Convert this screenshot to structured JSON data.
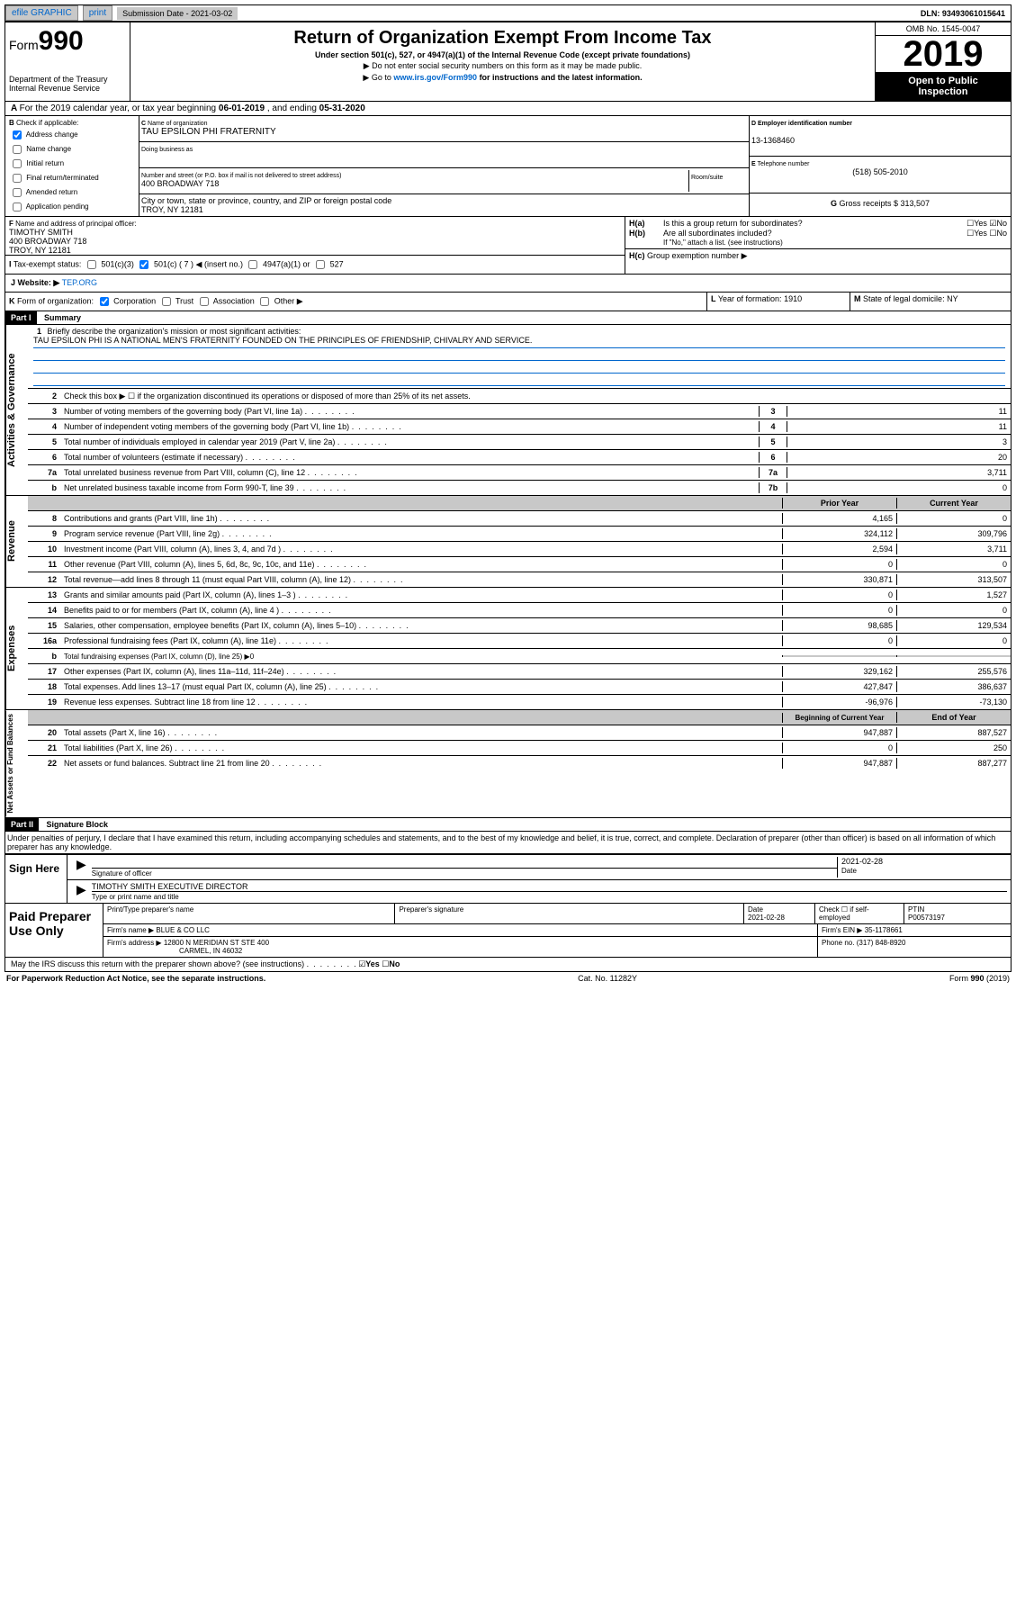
{
  "topbar": {
    "efile": "efile GRAPHIC",
    "print": "print",
    "sublabel": "Submission Date - 2021-03-02",
    "dln": "DLN: 93493061015641"
  },
  "header": {
    "form": "Form",
    "num": "990",
    "dept": "Department of the Treasury",
    "irs": "Internal Revenue Service",
    "title": "Return of Organization Exempt From Income Tax",
    "sub1": "Under section 501(c), 527, or 4947(a)(1) of the Internal Revenue Code (except private foundations)",
    "sub2": "▶ Do not enter social security numbers on this form as it may be made public.",
    "sub3a": "▶ Go to ",
    "sub3link": "www.irs.gov/Form990",
    "sub3b": " for instructions and the latest information.",
    "omb": "OMB No. 1545-0047",
    "year": "2019",
    "open": "Open to Public",
    "insp": "Inspection"
  },
  "A": {
    "text": "For the 2019 calendar year, or tax year beginning ",
    "begin": "06-01-2019",
    "mid": " , and ending ",
    "end": "05-31-2020"
  },
  "B": {
    "hdr": "Check if applicable:",
    "opts": [
      "Address change",
      "Name change",
      "Initial return",
      "Final return/terminated",
      "Amended return",
      "Application pending"
    ],
    "checked": [
      true,
      false,
      false,
      false,
      false,
      false
    ]
  },
  "C": {
    "nameL": "Name of organization",
    "name": "TAU EPSILON PHI FRATERNITY",
    "dbaL": "Doing business as",
    "dba": "",
    "addrL": "Number and street (or P.O. box if mail is not delivered to street address)",
    "room": "Room/suite",
    "addr": "400 BROADWAY 718",
    "cityL": "City or town, state or province, country, and ZIP or foreign postal code",
    "city": "TROY, NY  12181"
  },
  "D": {
    "lbl": "Employer identification number",
    "val": "13-1368460"
  },
  "E": {
    "lbl": "Telephone number",
    "val": "(518) 505-2010"
  },
  "G": {
    "lbl": "Gross receipts $",
    "val": "313,507"
  },
  "F": {
    "lbl": "Name and address of principal officer:",
    "name": "TIMOTHY SMITH",
    "addr": "400 BROADWAY 718",
    "city": "TROY, NY  12181"
  },
  "H": {
    "a": "Is this a group return for subordinates?",
    "b": "Are all subordinates included?",
    "bnote": "If \"No,\" attach a list. (see instructions)",
    "c": "Group exemption number ▶"
  },
  "I": {
    "lbl": "Tax-exempt status:",
    "o1": "501(c)(3)",
    "o2": "501(c) (",
    "n": "7",
    "o2b": ") ◀ (insert no.)",
    "o3": "4947(a)(1) or",
    "o4": "527"
  },
  "J": {
    "lbl": "Website: ▶",
    "val": "TEP.ORG"
  },
  "K": {
    "lbl": "Form of organization:",
    "o": [
      "Corporation",
      "Trust",
      "Association",
      "Other ▶"
    ]
  },
  "L": {
    "lbl": "Year of formation:",
    "val": "1910"
  },
  "M": {
    "lbl": "State of legal domicile:",
    "val": "NY"
  },
  "partI": {
    "hdr": "Part I",
    "title": "Summary"
  },
  "gov": {
    "label": "Activities & Governance",
    "l1": "Briefly describe the organization's mission or most significant activities:",
    "mission": "TAU EPSILON PHI IS A NATIONAL MEN'S FRATERNITY FOUNDED ON THE PRINCIPLES OF FRIENDSHIP, CHIVALRY AND SERVICE.",
    "l2": "Check this box ▶ ☐ if the organization discontinued its operations or disposed of more than 25% of its net assets.",
    "rows": [
      {
        "n": "3",
        "d": "Number of voting members of the governing body (Part VI, line 1a)",
        "k": "3",
        "v": "11"
      },
      {
        "n": "4",
        "d": "Number of independent voting members of the governing body (Part VI, line 1b)",
        "k": "4",
        "v": "11"
      },
      {
        "n": "5",
        "d": "Total number of individuals employed in calendar year 2019 (Part V, line 2a)",
        "k": "5",
        "v": "3"
      },
      {
        "n": "6",
        "d": "Total number of volunteers (estimate if necessary)",
        "k": "6",
        "v": "20"
      },
      {
        "n": "7a",
        "d": "Total unrelated business revenue from Part VIII, column (C), line 12",
        "k": "7a",
        "v": "3,711"
      },
      {
        "n": "b",
        "d": "Net unrelated business taxable income from Form 990-T, line 39",
        "k": "7b",
        "v": "0"
      }
    ]
  },
  "rev": {
    "label": "Revenue",
    "hdr1": "Prior Year",
    "hdr2": "Current Year",
    "rows": [
      {
        "n": "8",
        "d": "Contributions and grants (Part VIII, line 1h)",
        "p": "4,165",
        "c": "0"
      },
      {
        "n": "9",
        "d": "Program service revenue (Part VIII, line 2g)",
        "p": "324,112",
        "c": "309,796"
      },
      {
        "n": "10",
        "d": "Investment income (Part VIII, column (A), lines 3, 4, and 7d )",
        "p": "2,594",
        "c": "3,711"
      },
      {
        "n": "11",
        "d": "Other revenue (Part VIII, column (A), lines 5, 6d, 8c, 9c, 10c, and 11e)",
        "p": "0",
        "c": "0"
      },
      {
        "n": "12",
        "d": "Total revenue—add lines 8 through 11 (must equal Part VIII, column (A), line 12)",
        "p": "330,871",
        "c": "313,507"
      }
    ]
  },
  "exp": {
    "label": "Expenses",
    "rows": [
      {
        "n": "13",
        "d": "Grants and similar amounts paid (Part IX, column (A), lines 1–3 )",
        "p": "0",
        "c": "1,527"
      },
      {
        "n": "14",
        "d": "Benefits paid to or for members (Part IX, column (A), line 4 )",
        "p": "0",
        "c": "0"
      },
      {
        "n": "15",
        "d": "Salaries, other compensation, employee benefits (Part IX, column (A), lines 5–10)",
        "p": "98,685",
        "c": "129,534"
      },
      {
        "n": "16a",
        "d": "Professional fundraising fees (Part IX, column (A), line 11e)",
        "p": "0",
        "c": "0"
      },
      {
        "n": "b",
        "d": "Total fundraising expenses (Part IX, column (D), line 25) ▶0",
        "p": "",
        "c": "",
        "shaded": true
      },
      {
        "n": "17",
        "d": "Other expenses (Part IX, column (A), lines 11a–11d, 11f–24e)",
        "p": "329,162",
        "c": "255,576"
      },
      {
        "n": "18",
        "d": "Total expenses. Add lines 13–17 (must equal Part IX, column (A), line 25)",
        "p": "427,847",
        "c": "386,637"
      },
      {
        "n": "19",
        "d": "Revenue less expenses. Subtract line 18 from line 12",
        "p": "-96,976",
        "c": "-73,130"
      }
    ]
  },
  "net": {
    "label": "Net Assets or Fund Balances",
    "hdr1": "Beginning of Current Year",
    "hdr2": "End of Year",
    "rows": [
      {
        "n": "20",
        "d": "Total assets (Part X, line 16)",
        "p": "947,887",
        "c": "887,527"
      },
      {
        "n": "21",
        "d": "Total liabilities (Part X, line 26)",
        "p": "0",
        "c": "250"
      },
      {
        "n": "22",
        "d": "Net assets or fund balances. Subtract line 21 from line 20",
        "p": "947,887",
        "c": "887,277"
      }
    ]
  },
  "partII": {
    "hdr": "Part II",
    "title": "Signature Block"
  },
  "perjury": "Under penalties of perjury, I declare that I have examined this return, including accompanying schedules and statements, and to the best of my knowledge and belief, it is true, correct, and complete. Declaration of preparer (other than officer) is based on all information of which preparer has any knowledge.",
  "sign": {
    "l": "Sign Here",
    "sigoff": "Signature of officer",
    "date": "2021-02-28",
    "dateL": "Date",
    "name": "TIMOTHY SMITH  EXECUTIVE DIRECTOR",
    "nameL": "Type or print name and title"
  },
  "prep": {
    "l": "Paid Preparer Use Only",
    "h1": "Print/Type preparer's name",
    "h2": "Preparer's signature",
    "h3": "Date",
    "d": "2021-02-28",
    "h4": "Check ☐ if self-employed",
    "h5": "PTIN",
    "ptin": "P00573197",
    "fn": "Firm's name   ▶",
    "firm": "BLUE & CO LLC",
    "einL": "Firm's EIN ▶",
    "ein": "35-1178661",
    "fa": "Firm's address ▶",
    "addr": "12800 N MERIDIAN ST STE 400",
    "city": "CARMEL, IN  46032",
    "ph": "Phone no.",
    "phone": "(317) 848-8920"
  },
  "discuss": "May the IRS discuss this return with the preparer shown above? (see instructions)",
  "foot": {
    "l": "For Paperwork Reduction Act Notice, see the separate instructions.",
    "c": "Cat. No. 11282Y",
    "r": "Form 990 (2019)"
  }
}
